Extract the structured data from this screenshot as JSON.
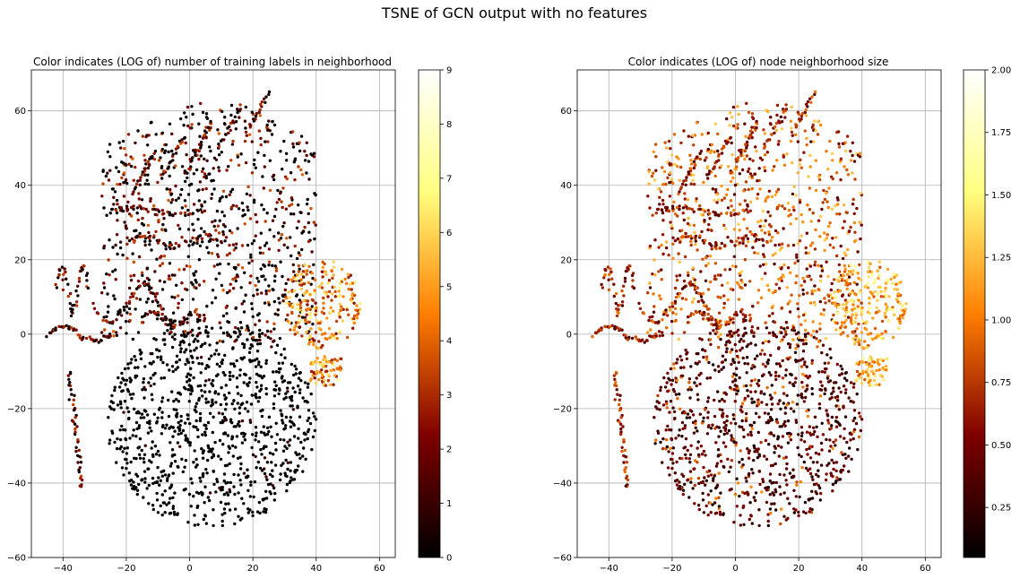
{
  "figure": {
    "suptitle": "TSNE of GCN output with no features"
  },
  "chart_data": [
    {
      "type": "scatter",
      "title": "Color indicates (LOG of) number of training labels in neighborhood",
      "xlim": [
        -50,
        65
      ],
      "ylim": [
        -60,
        71
      ],
      "xticks": [
        -40,
        -20,
        0,
        20,
        40,
        60
      ],
      "yticks": [
        -60,
        -40,
        -20,
        0,
        20,
        40,
        60
      ],
      "xtick_labels": [
        "−40",
        "−20",
        "0",
        "20",
        "40",
        "60"
      ],
      "ytick_labels": [
        "−60",
        "−40",
        "−20",
        "0",
        "20",
        "40",
        "60"
      ],
      "grid": true,
      "colormap": "afmhot",
      "colorbar": {
        "range": [
          0,
          9
        ],
        "ticks": [
          0,
          1,
          2,
          3,
          4,
          5,
          6,
          7,
          8,
          9
        ],
        "tick_labels": [
          "0",
          "1",
          "2",
          "3",
          "4",
          "5",
          "6",
          "7",
          "8",
          "9"
        ]
      }
    },
    {
      "type": "scatter",
      "title": "Color indicates (LOG of) node neighborhood size",
      "xlim": [
        -50,
        65
      ],
      "ylim": [
        -60,
        71
      ],
      "xticks": [
        -40,
        -20,
        0,
        20,
        40,
        60
      ],
      "yticks": [
        -60,
        -40,
        -20,
        0,
        20,
        40,
        60
      ],
      "xtick_labels": [
        "−40",
        "−20",
        "0",
        "20",
        "40",
        "60"
      ],
      "ytick_labels": [
        "−60",
        "−40",
        "−20",
        "0",
        "20",
        "40",
        "60"
      ],
      "grid": true,
      "colormap": "afmhot",
      "colorbar": {
        "range": [
          0.05,
          2.0
        ],
        "ticks": [
          0.25,
          0.5,
          0.75,
          1.0,
          1.25,
          1.5,
          1.75,
          2.0
        ],
        "tick_labels": [
          "0.25",
          "0.50",
          "0.75",
          "1.00",
          "1.25",
          "1.50",
          "1.75",
          "2.00"
        ]
      }
    }
  ],
  "colormap_stops": [
    [
      0,
      "#000000"
    ],
    [
      0.25,
      "#7f0000"
    ],
    [
      0.5,
      "#ff7f00"
    ],
    [
      0.75,
      "#ffff7f"
    ],
    [
      1,
      "#ffffff"
    ]
  ]
}
